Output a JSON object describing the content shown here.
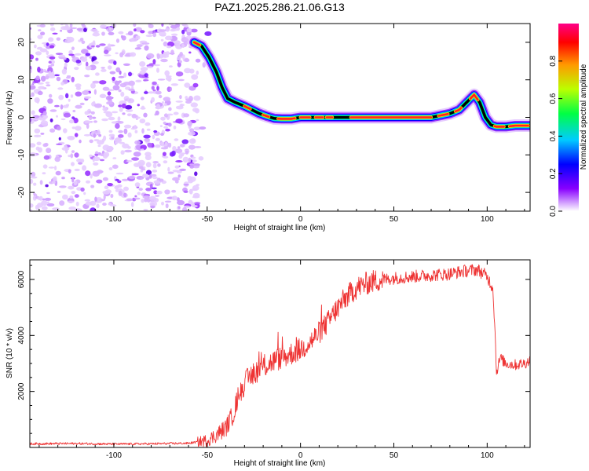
{
  "figure": {
    "title": "PAZ1.2025.286.21.06.G13"
  },
  "chart_data": [
    {
      "type": "heatmap",
      "xlabel": "Height of straight line (km)",
      "ylabel": "Frequency (Hz)",
      "xlim": [
        -145,
        123
      ],
      "ylim": [
        -25,
        25
      ],
      "xticks": [
        -100,
        -50,
        0,
        50,
        100
      ],
      "yticks": [
        -20,
        -10,
        0,
        10,
        20
      ],
      "colorbar": {
        "label": "Normalized spectral amplitude",
        "range": [
          0,
          1
        ],
        "ticks": [
          "0.0",
          "0.2",
          "0.4",
          "0.6",
          "0.8"
        ],
        "tick_values": [
          0,
          0.2,
          0.4,
          0.6,
          0.8
        ]
      },
      "noise_region_x": [
        -145,
        -55
      ],
      "signal_ridge": {
        "x": [
          -57,
          -53,
          -49,
          -45,
          -42,
          -39,
          -35,
          -30,
          -26,
          -22,
          -18,
          -14,
          -10,
          -5,
          0,
          10,
          20,
          30,
          40,
          50,
          60,
          70,
          75,
          80,
          85,
          89,
          93,
          96,
          99,
          102,
          105,
          110,
          115,
          123
        ],
        "freq": [
          20,
          19,
          16,
          12,
          8,
          5,
          4,
          3,
          2,
          1,
          0.3,
          -0.3,
          -0.4,
          -0.4,
          0,
          0,
          0,
          0,
          0,
          0,
          0,
          0,
          0.5,
          1,
          2,
          4,
          6,
          4,
          0,
          -2,
          -2.5,
          -2.5,
          -2.2,
          -2.2
        ]
      }
    },
    {
      "type": "line",
      "xlabel": "Height of straight line (km)",
      "ylabel": "SNR (10 * v/v)",
      "xlim": [
        -145,
        123
      ],
      "ylim": [
        0,
        6700
      ],
      "xticks": [
        -100,
        -50,
        0,
        50,
        100
      ],
      "yticks": [
        2000,
        4000,
        6000
      ],
      "series": [
        {
          "name": "SNR",
          "color": "#ee3333",
          "x": [
            -145,
            -120,
            -100,
            -80,
            -60,
            -50,
            -45,
            -40,
            -36,
            -33,
            -30,
            -26,
            -22,
            -18,
            -14,
            -10,
            -5,
            0,
            5,
            10,
            15,
            20,
            25,
            30,
            35,
            40,
            50,
            60,
            70,
            80,
            88,
            95,
            100,
            103,
            104,
            105,
            107,
            110,
            115,
            120,
            123
          ],
          "y": [
            130,
            140,
            120,
            130,
            150,
            250,
            450,
            700,
            1200,
            1900,
            2300,
            2600,
            2800,
            2950,
            3100,
            3200,
            3350,
            3500,
            3750,
            4100,
            4500,
            5000,
            5400,
            5700,
            5850,
            5950,
            6050,
            6100,
            6150,
            6200,
            6300,
            6350,
            6100,
            5700,
            4500,
            2700,
            3200,
            3000,
            2950,
            3000,
            3100
          ]
        }
      ]
    }
  ]
}
